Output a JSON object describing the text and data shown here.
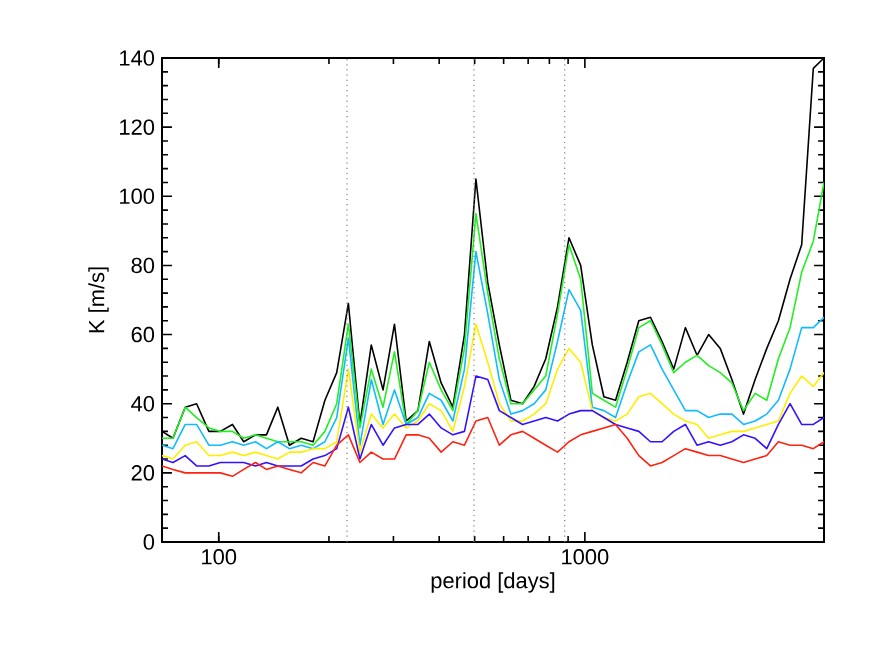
{
  "chart_data": {
    "type": "line",
    "xlabel": "period [days]",
    "ylabel": "K [m/s]",
    "log": "x",
    "x": [
      70,
      75,
      81,
      87,
      94,
      101,
      109,
      117,
      126,
      135,
      145,
      156,
      168,
      181,
      195,
      210,
      226,
      243,
      261,
      281,
      302,
      325,
      350,
      376,
      405,
      436,
      469,
      504,
      543,
      584,
      628,
      676,
      727,
      782,
      842,
      905,
      974,
      1048,
      1127,
      1213,
      1305,
      1404,
      1511,
      1625,
      1749,
      1882,
      2025,
      2178,
      2343,
      2521,
      2712,
      2918,
      3140,
      3378,
      3634,
      3910,
      4207,
      4500
    ],
    "series": [
      {
        "color": "#000000",
        "values": [
          32,
          30,
          39,
          40,
          32,
          32,
          34,
          29,
          31,
          31,
          39,
          28,
          30,
          29,
          41,
          49,
          69,
          34,
          57,
          44,
          63,
          35,
          38,
          58,
          46,
          39,
          60,
          105,
          75,
          57,
          41,
          40,
          45,
          53,
          68,
          88,
          80,
          57,
          42,
          41,
          52,
          64,
          65,
          58,
          50,
          62,
          54,
          60,
          56,
          47,
          37,
          47,
          56,
          64,
          76,
          86,
          137,
          140
        ]
      },
      {
        "color": "#22ee22",
        "values": [
          30,
          30,
          39,
          36,
          33,
          32,
          32,
          30,
          31,
          30,
          29,
          29,
          29,
          28,
          32,
          40,
          63,
          33,
          50,
          39,
          55,
          34,
          38,
          52,
          44,
          38,
          56,
          95,
          72,
          53,
          40,
          40,
          44,
          48,
          66,
          86,
          76,
          43,
          41,
          39,
          50,
          62,
          64,
          57,
          49,
          52,
          54,
          51,
          49,
          46,
          38,
          43,
          41,
          53,
          62,
          78,
          87,
          104
        ]
      },
      {
        "color": "#11bbff",
        "values": [
          28,
          27,
          34,
          34,
          28,
          28,
          29,
          28,
          29,
          27,
          29,
          27,
          28,
          27,
          29,
          36,
          59,
          28,
          47,
          34,
          44,
          34,
          36,
          43,
          41,
          35,
          50,
          84,
          66,
          47,
          37,
          38,
          40,
          44,
          58,
          73,
          67,
          39,
          38,
          36,
          46,
          55,
          57,
          50,
          44,
          38,
          38,
          36,
          37,
          37,
          34,
          35,
          37,
          41,
          50,
          62,
          62,
          65
        ]
      },
      {
        "color": "#ffee00",
        "values": [
          25,
          24,
          28,
          29,
          25,
          25,
          26,
          25,
          26,
          25,
          24,
          26,
          26,
          27,
          27,
          29,
          50,
          26,
          37,
          33,
          37,
          33,
          35,
          40,
          38,
          32,
          45,
          63,
          52,
          40,
          35,
          35,
          37,
          40,
          50,
          56,
          52,
          38,
          36,
          35,
          37,
          42,
          43,
          40,
          37,
          35,
          34,
          30,
          31,
          32,
          32,
          33,
          34,
          35,
          43,
          48,
          45,
          49
        ]
      },
      {
        "color": "#3311ff",
        "values": [
          24,
          23,
          25,
          22,
          22,
          23,
          23,
          23,
          22,
          23,
          22,
          22,
          22,
          24,
          25,
          27,
          39,
          24,
          34,
          28,
          33,
          34,
          34,
          37,
          33,
          31,
          32,
          48,
          47,
          38,
          36,
          34,
          35,
          36,
          35,
          37,
          38,
          38,
          36,
          34,
          33,
          32,
          29,
          29,
          32,
          34,
          28,
          29,
          28,
          29,
          31,
          30,
          27,
          34,
          40,
          34,
          34,
          36
        ]
      },
      {
        "color": "#ff2211",
        "values": [
          22,
          21,
          20,
          20,
          20,
          20,
          19,
          21,
          23,
          21,
          22,
          21,
          20,
          23,
          22,
          28,
          31,
          23,
          26,
          24,
          24,
          31,
          31,
          30,
          26,
          29,
          28,
          35,
          36,
          28,
          31,
          32,
          30,
          28,
          26,
          29,
          31,
          32,
          33,
          34,
          30,
          25,
          22,
          23,
          25,
          27,
          26,
          25,
          25,
          24,
          23,
          24,
          25,
          29,
          28,
          28,
          27,
          29
        ]
      }
    ],
    "xlim": [
      70,
      4500
    ],
    "ylim": [
      0,
      140
    ],
    "xticks": [
      100,
      1000
    ],
    "yticks": [
      0,
      20,
      40,
      60,
      80,
      100,
      120,
      140
    ],
    "ref_lines": [
      {
        "axis": "x",
        "value": 224,
        "color": "#808080",
        "line_style": "dotted"
      },
      {
        "axis": "x",
        "value": 498,
        "color": "#808080",
        "line_style": "dotted"
      },
      {
        "axis": "x",
        "value": 881,
        "color": "#808080",
        "line_style": "dotted"
      }
    ]
  }
}
